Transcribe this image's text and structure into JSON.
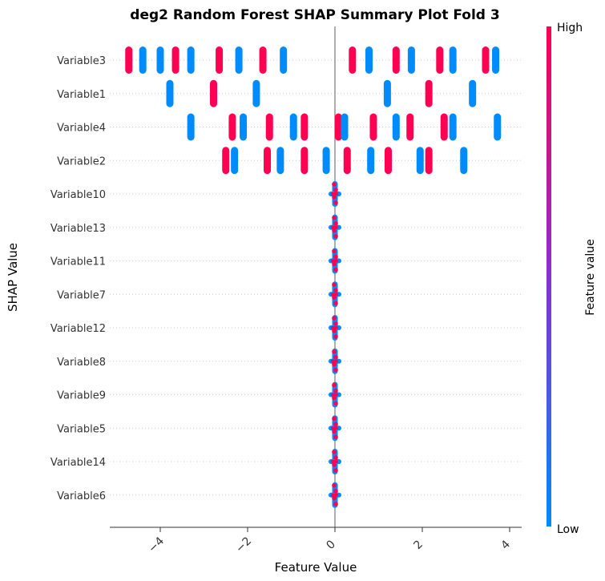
{
  "chart_data": {
    "type": "scatter",
    "subtype": "shap-beeswarm",
    "title": "deg2 Random Forest SHAP Summary Plot Fold 3",
    "xlabel": "Feature Value",
    "ylabel": "SHAP Value",
    "xlim": [
      -5.2,
      4.2
    ],
    "xticks": [
      -4,
      -2,
      0,
      2,
      4
    ],
    "xtick_labels": [
      "−4",
      "−2",
      "0",
      "2",
      "4"
    ],
    "colorbar": {
      "title": "Feature value",
      "high_label": "High",
      "low_label": "Low",
      "high_color": "#ff0052",
      "low_color": "#008bfb"
    },
    "features": [
      {
        "name": "Variable3",
        "clusters": [
          [
            -4.72,
            "high"
          ],
          [
            -4.4,
            "low"
          ],
          [
            -4.0,
            "low"
          ],
          [
            -3.65,
            "high"
          ],
          [
            -3.3,
            "low"
          ],
          [
            -2.65,
            "high"
          ],
          [
            -2.2,
            "low"
          ],
          [
            -1.65,
            "high"
          ],
          [
            -1.18,
            "low"
          ],
          [
            0.4,
            "high"
          ],
          [
            0.78,
            "low"
          ],
          [
            1.4,
            "high"
          ],
          [
            1.75,
            "low"
          ],
          [
            2.4,
            "high"
          ],
          [
            2.7,
            "low"
          ],
          [
            3.45,
            "high"
          ],
          [
            3.68,
            "low"
          ]
        ]
      },
      {
        "name": "Variable1",
        "clusters": [
          [
            -3.78,
            "low"
          ],
          [
            -2.78,
            "high"
          ],
          [
            -1.8,
            "low"
          ],
          [
            1.2,
            "low"
          ],
          [
            2.15,
            "high"
          ],
          [
            3.15,
            "low"
          ]
        ]
      },
      {
        "name": "Variable4",
        "clusters": [
          [
            -3.3,
            "low"
          ],
          [
            -2.35,
            "high"
          ],
          [
            -2.1,
            "low"
          ],
          [
            -1.5,
            "high"
          ],
          [
            -0.95,
            "low"
          ],
          [
            -0.7,
            "high"
          ],
          [
            0.08,
            "high"
          ],
          [
            0.22,
            "low"
          ],
          [
            0.88,
            "high"
          ],
          [
            1.4,
            "low"
          ],
          [
            1.72,
            "high"
          ],
          [
            2.5,
            "high"
          ],
          [
            2.7,
            "low"
          ],
          [
            3.72,
            "low"
          ]
        ]
      },
      {
        "name": "Variable2",
        "clusters": [
          [
            -2.5,
            "high"
          ],
          [
            -2.3,
            "low"
          ],
          [
            -1.55,
            "high"
          ],
          [
            -1.25,
            "low"
          ],
          [
            -0.7,
            "high"
          ],
          [
            -0.2,
            "low"
          ],
          [
            0.28,
            "high"
          ],
          [
            0.82,
            "low"
          ],
          [
            1.22,
            "high"
          ],
          [
            1.95,
            "low"
          ],
          [
            2.15,
            "high"
          ],
          [
            2.95,
            "low"
          ]
        ]
      },
      {
        "name": "Variable10",
        "clusters": [
          [
            0,
            "mixed"
          ]
        ]
      },
      {
        "name": "Variable13",
        "clusters": [
          [
            0,
            "mixed"
          ]
        ]
      },
      {
        "name": "Variable11",
        "clusters": [
          [
            0,
            "mixed"
          ]
        ]
      },
      {
        "name": "Variable7",
        "clusters": [
          [
            0,
            "mixed"
          ]
        ]
      },
      {
        "name": "Variable12",
        "clusters": [
          [
            0,
            "mixed"
          ]
        ]
      },
      {
        "name": "Variable8",
        "clusters": [
          [
            0,
            "mixed"
          ]
        ]
      },
      {
        "name": "Variable9",
        "clusters": [
          [
            0,
            "mixed"
          ]
        ]
      },
      {
        "name": "Variable5",
        "clusters": [
          [
            0,
            "mixed"
          ]
        ]
      },
      {
        "name": "Variable14",
        "clusters": [
          [
            0,
            "mixed"
          ]
        ]
      },
      {
        "name": "Variable6",
        "clusters": [
          [
            0,
            "mixed"
          ]
        ]
      }
    ]
  }
}
